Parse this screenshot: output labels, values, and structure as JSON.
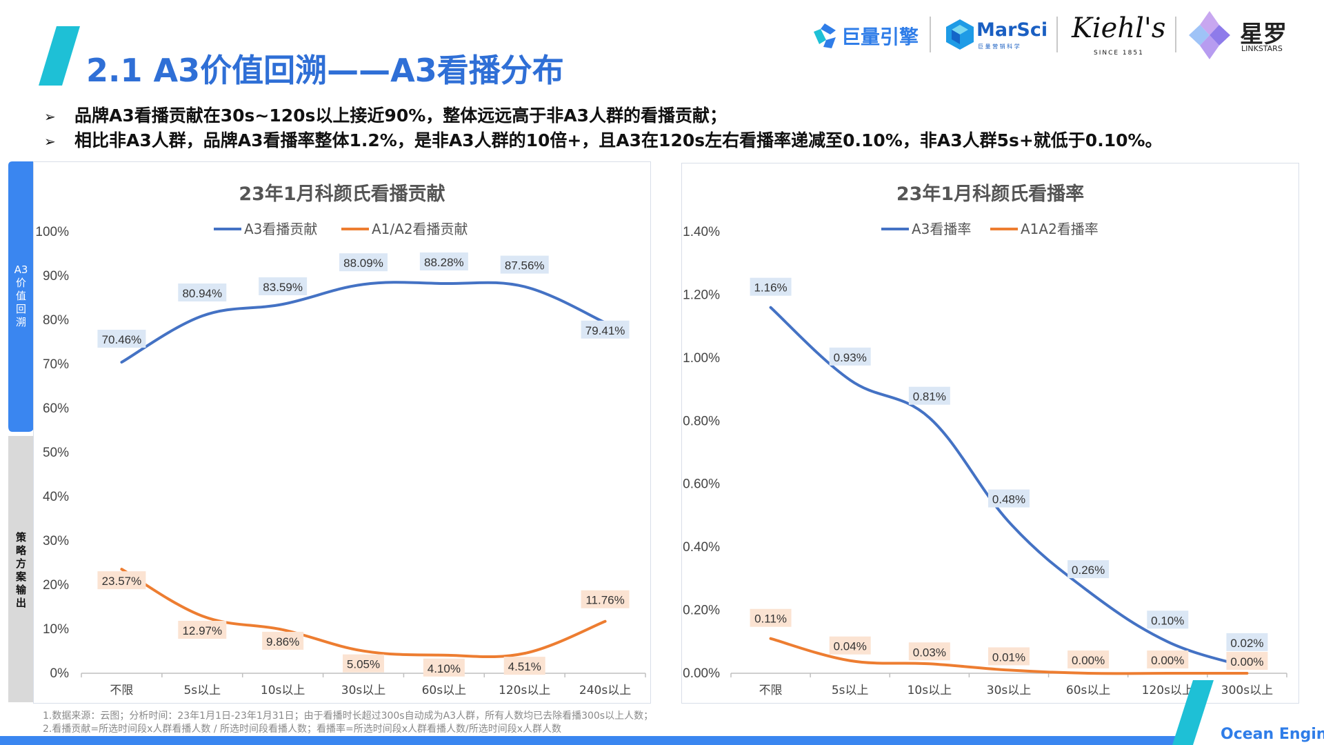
{
  "header": {
    "title": "2.1 A3价值回溯——A3看播分布",
    "logos": {
      "juliang": "巨量引擎",
      "marsci": "MarSci",
      "marsci_sub": "巨 量 营 销 科 学",
      "kiehls": "Kiehl's",
      "kiehls_sub": "SINCE 1851",
      "xingtu_cn": "星罗",
      "xingtu_en": "LINKSTARS"
    }
  },
  "bullets": [
    "品牌A3看播贡献在30s~120s以上接近90%，整体远远高于非A3人群的看播贡献；",
    "相比非A3人群，品牌A3看播率整体1.2%，是非A3人群的10倍+，且A3在120s左右看播率递减至0.10%，非A3人群5s+就低于0.10%。"
  ],
  "side_tabs": {
    "top": "A3\n价\n值\n回\n溯",
    "bottom": "策\n略\n方\n案\n输\n出"
  },
  "chart_data": [
    {
      "type": "line",
      "title": "23年1月科颜氏看播贡献",
      "categories": [
        "不限",
        "5s以上",
        "10s以上",
        "30s以上",
        "60s以上",
        "120s以上",
        "240s以上"
      ],
      "series": [
        {
          "name": "A3看播贡献",
          "color": "#4472c4",
          "values": [
            70.46,
            80.94,
            83.59,
            88.09,
            88.28,
            87.56,
            79.41
          ],
          "labels": [
            "70.46%",
            "80.94%",
            "83.59%",
            "88.09%",
            "88.28%",
            "87.56%",
            "79.41%"
          ]
        },
        {
          "name": "A1/A2看播贡献",
          "color": "#ed7d31",
          "values": [
            23.57,
            12.97,
            9.86,
            5.05,
            4.1,
            4.51,
            11.76
          ],
          "labels": [
            "23.57%",
            "12.97%",
            "9.86%",
            "5.05%",
            "4.10%",
            "4.51%",
            "11.76%"
          ]
        }
      ],
      "yticks": [
        "0%",
        "10%",
        "20%",
        "30%",
        "40%",
        "50%",
        "60%",
        "70%",
        "80%",
        "90%",
        "100%"
      ],
      "ylim": [
        0,
        100
      ],
      "legend": "top"
    },
    {
      "type": "line",
      "title": "23年1月科颜氏看播率",
      "categories": [
        "不限",
        "5s以上",
        "10s以上",
        "30s以上",
        "60s以上",
        "120s以上",
        "300s以上"
      ],
      "series": [
        {
          "name": "A3看播率",
          "color": "#4472c4",
          "values": [
            1.16,
            0.93,
            0.81,
            0.48,
            0.26,
            0.1,
            0.02
          ],
          "labels": [
            "1.16%",
            "0.93%",
            "0.81%",
            "0.48%",
            "0.26%",
            "0.10%",
            "0.02%"
          ]
        },
        {
          "name": "A1A2看播率",
          "color": "#ed7d31",
          "values": [
            0.11,
            0.04,
            0.03,
            0.01,
            0.0,
            0.0,
            0.0
          ],
          "labels": [
            "0.11%",
            "0.04%",
            "0.03%",
            "0.01%",
            "0.00%",
            "0.00%",
            "0.00%"
          ]
        }
      ],
      "yticks": [
        "0.00%",
        "0.20%",
        "0.40%",
        "0.60%",
        "0.80%",
        "1.00%",
        "1.20%",
        "1.40%"
      ],
      "ylim": [
        0,
        1.4
      ],
      "legend": "top"
    }
  ],
  "footnotes": [
    "1.数据来源：云图；分析时间：23年1月1日-23年1月31日；由于看播时长超过300s自动成为A3人群，所有人数均已去除看播300s以上人数；",
    "2.看播贡献=所选时间段x人群看播人数 / 所选时间段看播人数；看播率=所选时间段x人群看播人数/所选时间段x人群人数"
  ],
  "footer": {
    "brand": "Ocean Engine"
  },
  "colors": {
    "title_blue": "#2f6fd6",
    "teal": "#1ec0d6",
    "side_blue": "#3a86f0",
    "side_grey": "#d9d9d9"
  }
}
